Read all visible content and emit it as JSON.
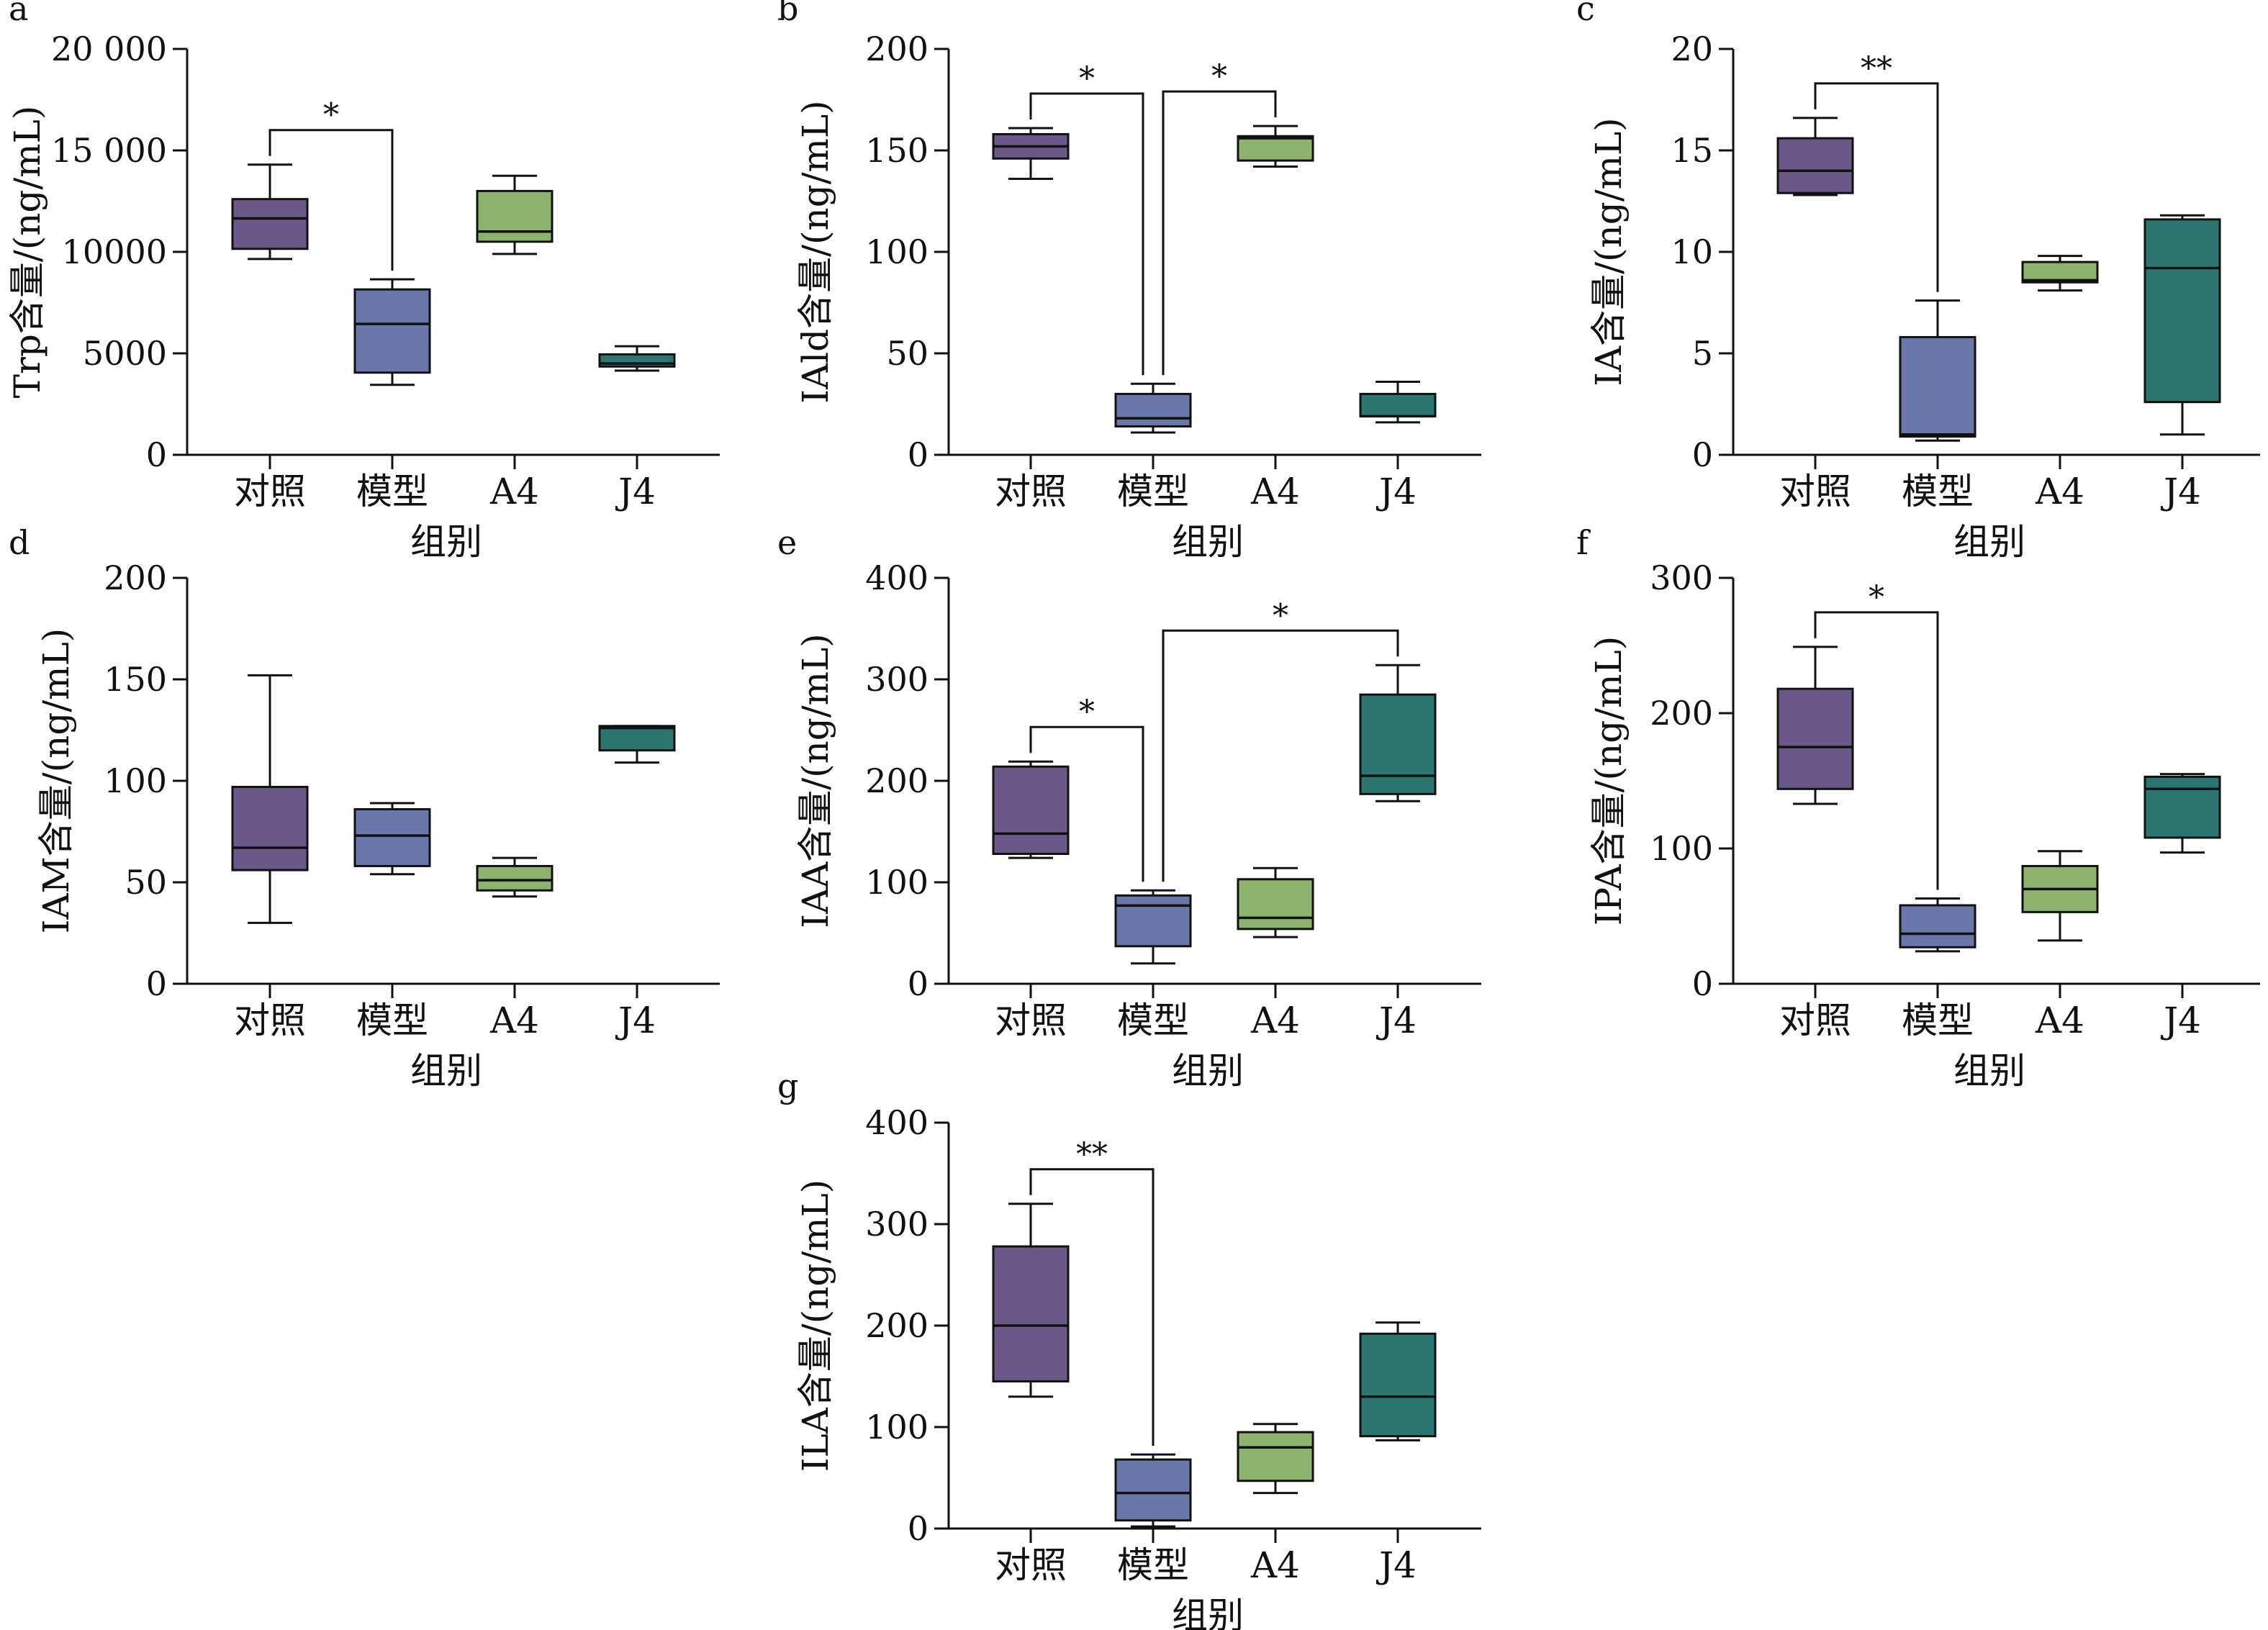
{
  "figure": {
    "shared_xlabel": "组别",
    "colors": {
      "对照": "#6b5889",
      "模型": "#6a77aa",
      "A4": "#8cb36b",
      "J4": "#2b7670"
    }
  },
  "chart_data": [
    {
      "type": "box",
      "panel": "a",
      "ylabel": "Trp含量/(ng/mL)",
      "xlabel": "组别",
      "ylim": [
        0,
        20000
      ],
      "yticks": [
        0,
        5000,
        10000,
        15000,
        20000
      ],
      "ytick_labels": [
        "0",
        "5000",
        "10000",
        "15 000",
        "20 000"
      ],
      "categories": [
        "对照",
        "模型",
        "A4",
        "J4"
      ],
      "boxes": [
        {
          "min": 9650,
          "q1": 10150,
          "median": 11650,
          "q3": 12600,
          "max": 14300
        },
        {
          "min": 3450,
          "q1": 4050,
          "median": 6450,
          "q3": 8150,
          "max": 8650
        },
        {
          "min": 9900,
          "q1": 10500,
          "median": 11000,
          "q3": 13000,
          "max": 13750
        },
        {
          "min": 4150,
          "q1": 4350,
          "median": 4500,
          "q3": 4950,
          "max": 5350
        }
      ],
      "annotations": [
        {
          "from": 0,
          "to": 1,
          "label": "*"
        }
      ]
    },
    {
      "type": "box",
      "panel": "b",
      "ylabel": "IAld含量/(ng/mL)",
      "xlabel": "组别",
      "ylim": [
        0,
        200
      ],
      "yticks": [
        0,
        50,
        100,
        150,
        200
      ],
      "ytick_labels": [
        "0",
        "50",
        "100",
        "150",
        "200"
      ],
      "categories": [
        "对照",
        "模型",
        "A4",
        "J4"
      ],
      "boxes": [
        {
          "min": 136,
          "q1": 146,
          "median": 152,
          "q3": 158,
          "max": 161
        },
        {
          "min": 11,
          "q1": 14,
          "median": 18,
          "q3": 30,
          "max": 35
        },
        {
          "min": 142,
          "q1": 145,
          "median": 156,
          "q3": 157,
          "max": 162
        },
        {
          "min": 16,
          "q1": 19,
          "median": 19,
          "q3": 30,
          "max": 36
        }
      ],
      "annotations": [
        {
          "from": 0,
          "to": 1,
          "label": "*"
        },
        {
          "from": 1,
          "to": 2,
          "label": "*"
        }
      ]
    },
    {
      "type": "box",
      "panel": "c",
      "ylabel": "IA含量/(ng/mL)",
      "xlabel": "组别",
      "ylim": [
        0,
        20
      ],
      "yticks": [
        0,
        5,
        10,
        15,
        20
      ],
      "ytick_labels": [
        "0",
        "5",
        "10",
        "15",
        "20"
      ],
      "categories": [
        "对照",
        "模型",
        "A4",
        "J4"
      ],
      "boxes": [
        {
          "min": 12.8,
          "q1": 12.9,
          "median": 14.0,
          "q3": 15.6,
          "max": 16.6
        },
        {
          "min": 0.7,
          "q1": 0.9,
          "median": 1.0,
          "q3": 5.8,
          "max": 7.6
        },
        {
          "min": 8.1,
          "q1": 8.5,
          "median": 8.6,
          "q3": 9.5,
          "max": 9.8
        },
        {
          "min": 1.0,
          "q1": 2.6,
          "median": 9.2,
          "q3": 11.6,
          "max": 11.8
        }
      ],
      "annotations": [
        {
          "from": 0,
          "to": 1,
          "label": "**"
        }
      ]
    },
    {
      "type": "box",
      "panel": "d",
      "ylabel": "IAM含量/(ng/mL)",
      "xlabel": "组别",
      "ylim": [
        0,
        200
      ],
      "yticks": [
        0,
        50,
        100,
        150,
        200
      ],
      "ytick_labels": [
        "0",
        "50",
        "100",
        "150",
        "200"
      ],
      "categories": [
        "对照",
        "模型",
        "A4",
        "J4"
      ],
      "boxes": [
        {
          "min": 30,
          "q1": 56,
          "median": 67,
          "q3": 97,
          "max": 152
        },
        {
          "min": 54,
          "q1": 58,
          "median": 73,
          "q3": 86,
          "max": 89
        },
        {
          "min": 43,
          "q1": 46,
          "median": 51,
          "q3": 58,
          "max": 62
        },
        {
          "min": 109,
          "q1": 115,
          "median": 126,
          "q3": 127,
          "max": 127
        }
      ],
      "annotations": []
    },
    {
      "type": "box",
      "panel": "e",
      "ylabel": "IAA含量/(ng/mL)",
      "xlabel": "组别",
      "ylim": [
        0,
        400
      ],
      "yticks": [
        0,
        100,
        200,
        300,
        400
      ],
      "ytick_labels": [
        "0",
        "100",
        "200",
        "300",
        "400"
      ],
      "categories": [
        "对照",
        "模型",
        "A4",
        "J4"
      ],
      "boxes": [
        {
          "min": 124,
          "q1": 128,
          "median": 148,
          "q3": 214,
          "max": 219
        },
        {
          "min": 20,
          "q1": 37,
          "median": 77,
          "q3": 87,
          "max": 92
        },
        {
          "min": 46,
          "q1": 54,
          "median": 65,
          "q3": 103,
          "max": 114
        },
        {
          "min": 180,
          "q1": 187,
          "median": 205,
          "q3": 285,
          "max": 314
        }
      ],
      "annotations": [
        {
          "from": 0,
          "to": 1,
          "label": "*"
        },
        {
          "from": 1,
          "to": 3,
          "label": "*"
        }
      ]
    },
    {
      "type": "box",
      "panel": "f",
      "ylabel": "IPA含量/(ng/mL)",
      "xlabel": "组别",
      "ylim": [
        0,
        300
      ],
      "yticks": [
        0,
        100,
        200,
        300
      ],
      "ytick_labels": [
        "0",
        "100",
        "200",
        "300"
      ],
      "categories": [
        "对照",
        "模型",
        "A4",
        "J4"
      ],
      "boxes": [
        {
          "min": 133,
          "q1": 144,
          "median": 175,
          "q3": 218,
          "max": 249
        },
        {
          "min": 24,
          "q1": 27,
          "median": 37,
          "q3": 58,
          "max": 63
        },
        {
          "min": 32,
          "q1": 53,
          "median": 70,
          "q3": 87,
          "max": 98
        },
        {
          "min": 97,
          "q1": 108,
          "median": 144,
          "q3": 153,
          "max": 155
        }
      ],
      "annotations": [
        {
          "from": 0,
          "to": 1,
          "label": "*"
        }
      ]
    },
    {
      "type": "box",
      "panel": "g",
      "ylabel": "ILA含量/(ng/mL)",
      "xlabel": "组别",
      "ylim": [
        0,
        400
      ],
      "yticks": [
        0,
        100,
        200,
        300,
        400
      ],
      "ytick_labels": [
        "0",
        "100",
        "200",
        "300",
        "400"
      ],
      "categories": [
        "对照",
        "模型",
        "A4",
        "J4"
      ],
      "boxes": [
        {
          "min": 130,
          "q1": 145,
          "median": 200,
          "q3": 278,
          "max": 320
        },
        {
          "min": 2,
          "q1": 8,
          "median": 35,
          "q3": 68,
          "max": 73
        },
        {
          "min": 35,
          "q1": 47,
          "median": 80,
          "q3": 95,
          "max": 103
        },
        {
          "min": 87,
          "q1": 91,
          "median": 130,
          "q3": 192,
          "max": 203
        }
      ],
      "annotations": [
        {
          "from": 0,
          "to": 1,
          "label": "**"
        }
      ]
    }
  ]
}
